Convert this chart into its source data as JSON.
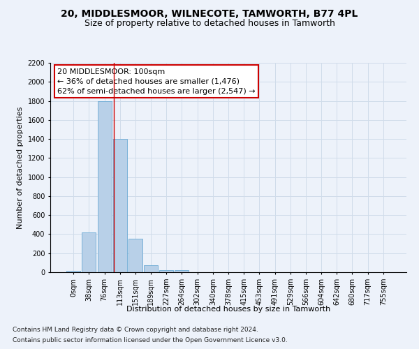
{
  "title1": "20, MIDDLESMOOR, WILNECOTE, TAMWORTH, B77 4PL",
  "title2": "Size of property relative to detached houses in Tamworth",
  "xlabel": "Distribution of detached houses by size in Tamworth",
  "ylabel": "Number of detached properties",
  "bar_labels": [
    "0sqm",
    "38sqm",
    "76sqm",
    "113sqm",
    "151sqm",
    "189sqm",
    "227sqm",
    "264sqm",
    "302sqm",
    "340sqm",
    "378sqm",
    "415sqm",
    "453sqm",
    "491sqm",
    "529sqm",
    "566sqm",
    "604sqm",
    "642sqm",
    "680sqm",
    "717sqm",
    "755sqm"
  ],
  "bar_values": [
    15,
    420,
    1800,
    1400,
    355,
    75,
    25,
    20,
    0,
    0,
    0,
    0,
    0,
    0,
    0,
    0,
    0,
    0,
    0,
    0,
    0
  ],
  "bar_color": "#b8d0e8",
  "bar_edge_color": "#6aaad4",
  "grid_color": "#d0dcea",
  "background_color": "#edf2fa",
  "annotation_line1": "20 MIDDLESMOOR: 100sqm",
  "annotation_line2": "← 36% of detached houses are smaller (1,476)",
  "annotation_line3": "62% of semi-detached houses are larger (2,547) →",
  "annotation_box_color": "#ffffff",
  "annotation_box_edge": "#cc0000",
  "vline_x": 2.62,
  "vline_color": "#cc0000",
  "ylim_max": 2200,
  "yticks": [
    0,
    200,
    400,
    600,
    800,
    1000,
    1200,
    1400,
    1600,
    1800,
    2000,
    2200
  ],
  "footer1": "Contains HM Land Registry data © Crown copyright and database right 2024.",
  "footer2": "Contains public sector information licensed under the Open Government Licence v3.0.",
  "title1_fontsize": 10,
  "title2_fontsize": 9,
  "axis_label_fontsize": 8,
  "tick_fontsize": 7,
  "annotation_fontsize": 8,
  "footer_fontsize": 6.5
}
